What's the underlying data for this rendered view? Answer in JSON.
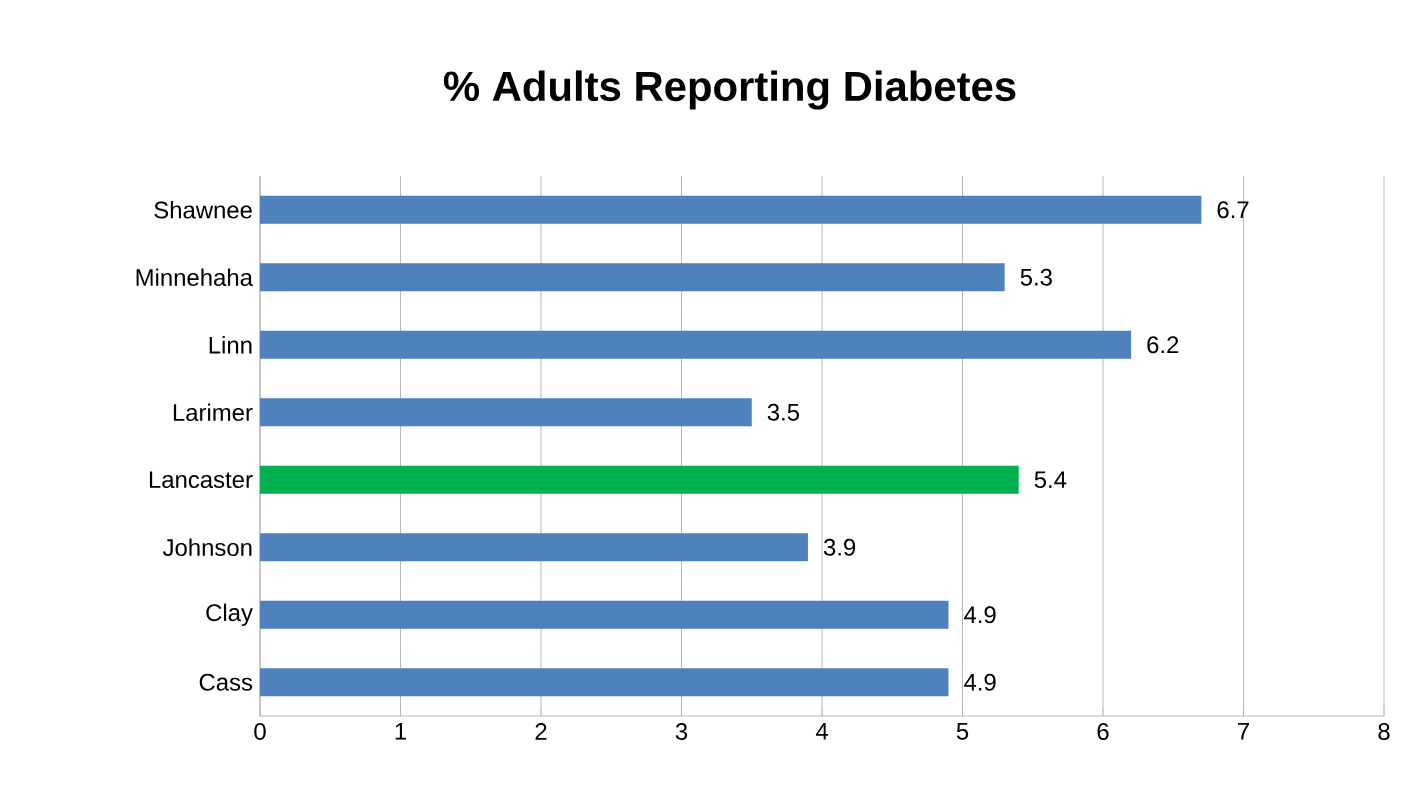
{
  "chart_data": {
    "type": "bar",
    "orientation": "horizontal",
    "title": "% Adults Reporting Diabetes",
    "categories": [
      "Shawnee",
      "Minnehaha",
      "Linn",
      "Larimer",
      "Lancaster",
      "Johnson",
      "Clay",
      "Cass"
    ],
    "values": [
      6.7,
      5.3,
      6.2,
      3.5,
      5.4,
      3.9,
      4.9,
      4.9
    ],
    "colors": [
      "#4f81bd",
      "#4f81bd",
      "#4f81bd",
      "#4f81bd",
      "#00b050",
      "#4f81bd",
      "#4f81bd",
      "#4f81bd"
    ],
    "xlim": [
      0,
      8
    ],
    "xticks": [
      0,
      1,
      2,
      3,
      4,
      5,
      6,
      7,
      8
    ],
    "grid": "x",
    "data_labels": true
  }
}
